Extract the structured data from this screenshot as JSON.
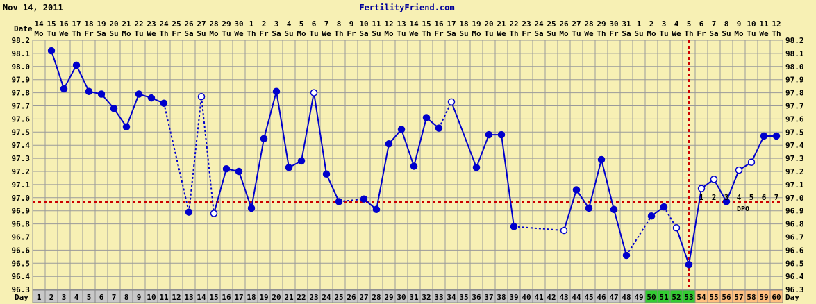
{
  "header": {
    "date_stamp": "Nov 14, 2011",
    "site": "FertilityFriend.com"
  },
  "labels": {
    "date_row": "Date",
    "day_row": "Day",
    "dpo": "DPO"
  },
  "colors": {
    "background": "#f7f0b4",
    "line": "#0000cc",
    "coverline": "#cc0000",
    "day_cell_gray": "#c8c8c8",
    "day_cell_green": "#33cc33",
    "day_cell_orange": "#ffc080"
  },
  "chart_data": {
    "type": "line",
    "title": "",
    "ylabel": "",
    "xlabel": "",
    "ylim": [
      96.3,
      98.2
    ],
    "yticks": [
      98.2,
      98.1,
      98.0,
      97.9,
      97.8,
      97.7,
      97.6,
      97.5,
      97.4,
      97.3,
      97.2,
      97.1,
      97.0,
      96.9,
      96.8,
      96.7,
      96.6,
      96.5,
      96.4,
      96.3
    ],
    "grid": true,
    "days": [
      1,
      2,
      3,
      4,
      5,
      6,
      7,
      8,
      9,
      10,
      11,
      12,
      13,
      14,
      15,
      16,
      17,
      18,
      19,
      20,
      21,
      22,
      23,
      24,
      25,
      26,
      27,
      28,
      29,
      30,
      31,
      32,
      33,
      34,
      35,
      36,
      37,
      38,
      39,
      40,
      41,
      42,
      43,
      44,
      45,
      46,
      47,
      48,
      49,
      50,
      51,
      52,
      53,
      54,
      55,
      56,
      57,
      58,
      59,
      60
    ],
    "dates": [
      "14",
      "15",
      "16",
      "17",
      "18",
      "19",
      "20",
      "21",
      "22",
      "23",
      "24",
      "25",
      "26",
      "27",
      "28",
      "29",
      "30",
      "1",
      "2",
      "3",
      "4",
      "5",
      "6",
      "7",
      "8",
      "9",
      "10",
      "11",
      "12",
      "13",
      "14",
      "15",
      "16",
      "17",
      "18",
      "19",
      "20",
      "21",
      "22",
      "23",
      "24",
      "25",
      "26",
      "27",
      "28",
      "29",
      "30",
      "31",
      "1",
      "2",
      "3",
      "4",
      "5",
      "6",
      "7",
      "8",
      "9",
      "10",
      "11",
      "12"
    ],
    "weekdays": [
      "Mo",
      "Tu",
      "We",
      "Th",
      "Fr",
      "Sa",
      "Su",
      "Mo",
      "Tu",
      "We",
      "Th",
      "Fr",
      "Sa",
      "Su",
      "Mo",
      "Tu",
      "We",
      "Th",
      "Fr",
      "Sa",
      "Su",
      "Mo",
      "Tu",
      "We",
      "Th",
      "Fr",
      "Sa",
      "Su",
      "Mo",
      "Tu",
      "We",
      "Th",
      "Fr",
      "Sa",
      "Su",
      "Mo",
      "Tu",
      "We",
      "Th",
      "Fr",
      "Sa",
      "Su",
      "Mo",
      "Tu",
      "We",
      "Th",
      "Fr",
      "Sa",
      "Su",
      "Mo",
      "Tu",
      "We",
      "Th",
      "Fr",
      "Sa",
      "Su",
      "Mo",
      "Tu",
      "We",
      "Th"
    ],
    "temps": [
      null,
      98.12,
      97.83,
      98.01,
      97.81,
      97.79,
      97.68,
      97.54,
      97.79,
      97.76,
      97.72,
      null,
      96.89,
      97.77,
      96.88,
      97.22,
      97.2,
      96.92,
      97.45,
      97.81,
      97.23,
      97.28,
      97.8,
      97.18,
      96.97,
      null,
      96.99,
      96.91,
      97.41,
      97.52,
      97.24,
      97.61,
      97.53,
      97.73,
      null,
      97.23,
      97.48,
      97.48,
      96.78,
      null,
      null,
      null,
      96.75,
      97.06,
      96.92,
      97.29,
      96.91,
      96.56,
      null,
      96.86,
      96.93,
      96.77,
      96.49,
      97.07,
      97.14,
      96.97,
      97.21,
      97.27,
      97.47,
      97.47
    ],
    "open_markers": [
      14,
      15,
      23,
      34,
      43,
      52,
      54,
      55,
      57,
      58
    ],
    "dashed_into": [
      13,
      14,
      15,
      27,
      34,
      43,
      50,
      52
    ],
    "coverline": 96.97,
    "ovulation_day": 53,
    "dpo_labels": [
      "1",
      "2",
      "3",
      "4",
      "5",
      "6",
      "7"
    ],
    "green_days": [
      50,
      51,
      52,
      53
    ],
    "orange_days": [
      54,
      55,
      56,
      57,
      58,
      59,
      60
    ]
  }
}
